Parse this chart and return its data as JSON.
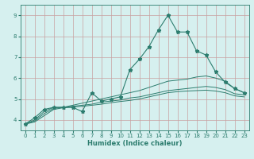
{
  "xlabel": "Humidex (Indice chaleur)",
  "ylabel": "",
  "bg_color": "#d6f0ef",
  "grid_color": "#c8a0a0",
  "line_color": "#2d7d6f",
  "xlim": [
    -0.5,
    23.5
  ],
  "ylim": [
    3.5,
    9.5
  ],
  "xticks": [
    0,
    1,
    2,
    3,
    4,
    5,
    6,
    7,
    8,
    9,
    10,
    11,
    12,
    13,
    14,
    15,
    16,
    17,
    18,
    19,
    20,
    21,
    22,
    23
  ],
  "yticks": [
    4,
    5,
    6,
    7,
    8,
    9
  ],
  "series": [
    {
      "x": [
        0,
        1,
        2,
        3,
        4,
        5,
        6,
        7,
        8,
        9,
        10,
        11,
        12,
        13,
        14,
        15,
        16,
        17,
        18,
        19,
        20,
        21,
        22,
        23
      ],
      "y": [
        3.8,
        4.1,
        4.5,
        4.6,
        4.6,
        4.6,
        4.4,
        5.3,
        4.9,
        5.0,
        5.1,
        6.4,
        6.9,
        7.5,
        8.3,
        9.0,
        8.2,
        8.2,
        7.3,
        7.1,
        6.3,
        5.8,
        5.5,
        5.3
      ],
      "marker": true
    },
    {
      "x": [
        0,
        1,
        2,
        3,
        4,
        5,
        6,
        7,
        8,
        9,
        10,
        11,
        12,
        13,
        14,
        15,
        16,
        17,
        18,
        19,
        20,
        21,
        22,
        23
      ],
      "y": [
        3.8,
        4.0,
        4.4,
        4.6,
        4.6,
        4.7,
        4.8,
        4.9,
        5.0,
        5.1,
        5.2,
        5.3,
        5.4,
        5.55,
        5.7,
        5.85,
        5.9,
        5.95,
        6.05,
        6.1,
        6.0,
        5.85,
        5.5,
        5.3
      ],
      "marker": false
    },
    {
      "x": [
        0,
        1,
        2,
        3,
        4,
        5,
        6,
        7,
        8,
        9,
        10,
        11,
        12,
        13,
        14,
        15,
        16,
        17,
        18,
        19,
        20,
        21,
        22,
        23
      ],
      "y": [
        3.8,
        3.95,
        4.3,
        4.55,
        4.6,
        4.65,
        4.7,
        4.75,
        4.85,
        4.9,
        4.95,
        5.05,
        5.1,
        5.2,
        5.3,
        5.4,
        5.45,
        5.5,
        5.55,
        5.6,
        5.55,
        5.45,
        5.25,
        5.2
      ],
      "marker": false
    },
    {
      "x": [
        0,
        1,
        2,
        3,
        4,
        5,
        6,
        7,
        8,
        9,
        10,
        11,
        12,
        13,
        14,
        15,
        16,
        17,
        18,
        19,
        20,
        21,
        22,
        23
      ],
      "y": [
        3.8,
        3.9,
        4.2,
        4.5,
        4.58,
        4.62,
        4.65,
        4.7,
        4.75,
        4.82,
        4.88,
        4.93,
        5.0,
        5.1,
        5.2,
        5.3,
        5.35,
        5.38,
        5.4,
        5.42,
        5.38,
        5.3,
        5.15,
        5.1
      ],
      "marker": false
    }
  ]
}
